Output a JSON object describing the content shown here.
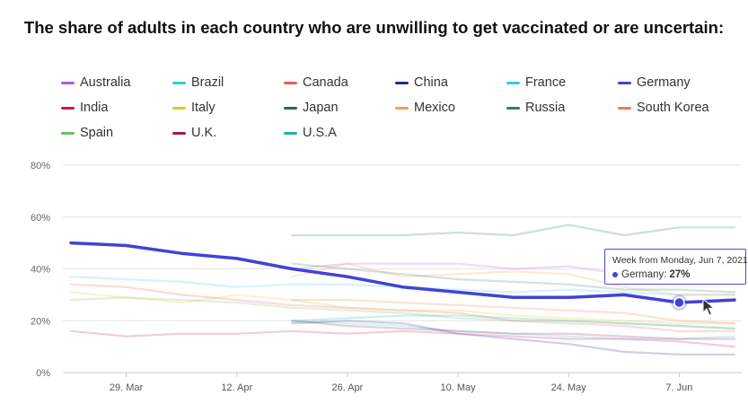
{
  "chart_data": {
    "type": "line",
    "title": "The share of adults in each country who are unwilling to get vaccinated or are uncertain:",
    "xlabel": "",
    "ylabel": "",
    "ylim": [
      0,
      80
    ],
    "yticks": [
      "0%",
      "20%",
      "40%",
      "60%",
      "80%"
    ],
    "ytick_values": [
      0,
      20,
      40,
      60,
      80
    ],
    "x": [
      "Mar 22",
      "Mar 29",
      "Apr 5",
      "Apr 12",
      "Apr 19",
      "Apr 26",
      "May 3",
      "May 10",
      "May 17",
      "May 24",
      "May 31",
      "Jun 7",
      "Jun 14"
    ],
    "xticks": [
      "29. Mar",
      "12. Apr",
      "26. Apr",
      "10. May",
      "24. May",
      "7. Jun"
    ],
    "xtick_index": [
      1,
      3,
      5,
      7,
      9,
      11
    ],
    "grid": true,
    "legend_position": "top",
    "highlighted_series": "Germany",
    "series": [
      {
        "name": "Australia",
        "color": "#b05fd6",
        "values": [
          null,
          null,
          null,
          null,
          40,
          42,
          42,
          42,
          40,
          41,
          38,
          36,
          37
        ]
      },
      {
        "name": "Brazil",
        "color": "#26d6c4",
        "values": [
          null,
          null,
          null,
          null,
          20,
          19,
          18,
          16,
          15,
          14,
          13,
          13,
          14
        ]
      },
      {
        "name": "Canada",
        "color": "#f05a50",
        "values": [
          34,
          33,
          30,
          28,
          26,
          25,
          24,
          23,
          20,
          19,
          18,
          16,
          16
        ]
      },
      {
        "name": "China",
        "color": "#232a8a",
        "values": [
          null,
          null,
          null,
          null,
          19,
          20,
          19,
          15,
          13,
          11,
          8,
          7,
          7
        ]
      },
      {
        "name": "France",
        "color": "#3cc4ee",
        "values": [
          37,
          36,
          35,
          33,
          34,
          34,
          33,
          32,
          31,
          32,
          31,
          30,
          30
        ]
      },
      {
        "name": "Germany",
        "color": "#4242d6",
        "values": [
          50,
          49,
          46,
          44,
          40,
          37,
          33,
          31,
          29,
          29,
          30,
          27,
          28
        ]
      },
      {
        "name": "India",
        "color": "#c2185b",
        "values": [
          16,
          14,
          15,
          15,
          16,
          15,
          16,
          15,
          14,
          13,
          13,
          12,
          10
        ]
      },
      {
        "name": "Italy",
        "color": "#e8c51f",
        "values": [
          31,
          29,
          27,
          30,
          28,
          25,
          24,
          24,
          22,
          21,
          20,
          19,
          19
        ]
      },
      {
        "name": "Japan",
        "color": "#1f6e4c",
        "values": [
          null,
          null,
          null,
          null,
          53,
          53,
          53,
          54,
          53,
          57,
          53,
          56,
          56
        ]
      },
      {
        "name": "Mexico",
        "color": "#f5a04a",
        "values": [
          null,
          null,
          null,
          null,
          37,
          42,
          37,
          38,
          39,
          38,
          33,
          30,
          30
        ]
      },
      {
        "name": "Russia",
        "color": "#2e7d6e",
        "values": [
          null,
          null,
          null,
          null,
          42,
          40,
          38,
          36,
          35,
          34,
          32,
          32,
          31
        ]
      },
      {
        "name": "South Korea",
        "color": "#f47c46",
        "values": [
          null,
          null,
          null,
          null,
          28,
          28,
          27,
          26,
          25,
          24,
          23,
          20,
          19
        ]
      },
      {
        "name": "Spain",
        "color": "#6dbf6a",
        "values": [
          28,
          29,
          28,
          27,
          25,
          24,
          23,
          21,
          20,
          20,
          19,
          18,
          17
        ]
      },
      {
        "name": "U.K.",
        "color": "#a0195a",
        "values": [
          null,
          null,
          null,
          null,
          20,
          18,
          17,
          16,
          15,
          15,
          14,
          13,
          13
        ]
      },
      {
        "name": "U.S.A",
        "color": "#20b3a8",
        "values": [
          null,
          null,
          null,
          null,
          20,
          21,
          22,
          22,
          21,
          20,
          19,
          18,
          17
        ]
      }
    ]
  },
  "tooltip": {
    "title": "Week from Monday, Jun 7, 2021",
    "series": "Germany:",
    "value": "27%"
  }
}
